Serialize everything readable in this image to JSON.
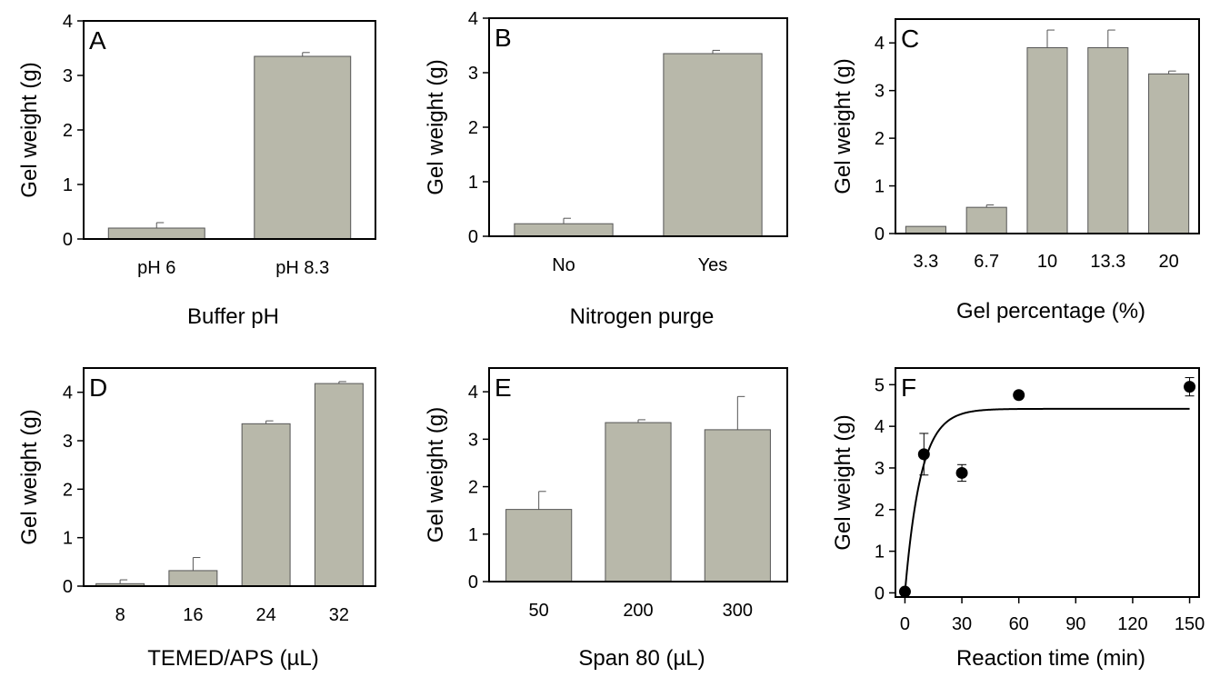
{
  "figure": {
    "colors": {
      "bar_fill": "#b8b8aa",
      "bar_stroke": "#555555",
      "marker": "#000000",
      "line": "#000000"
    }
  },
  "chart_data": [
    {
      "panel": "A",
      "type": "bar",
      "ylabel": "Gel weight (g)",
      "xlabel": "Buffer pH",
      "categories": [
        "pH 6",
        "pH 8.3"
      ],
      "values": [
        0.2,
        3.35
      ],
      "errors": [
        0.1,
        0.07
      ],
      "ylim": [
        0,
        4
      ],
      "yticks": [
        0,
        1,
        2,
        3,
        4
      ]
    },
    {
      "panel": "B",
      "type": "bar",
      "ylabel": "Gel weight (g)",
      "xlabel": "Nitrogen purge",
      "categories": [
        "No",
        "Yes"
      ],
      "values": [
        0.23,
        3.35
      ],
      "errors": [
        0.1,
        0.06
      ],
      "ylim": [
        0,
        4
      ],
      "yticks": [
        0,
        1,
        2,
        3,
        4
      ]
    },
    {
      "panel": "C",
      "type": "bar",
      "ylabel": "Gel weight (g)",
      "xlabel": "Gel percentage (%)",
      "categories": [
        "3.3",
        "6.7",
        "10",
        "13.3",
        "20"
      ],
      "values": [
        0.15,
        0.55,
        3.9,
        3.9,
        3.35
      ],
      "errors": [
        0,
        0.05,
        0.37,
        0.37,
        0.06
      ],
      "ylim": [
        0,
        4.5
      ],
      "yticks": [
        0,
        1,
        2,
        3,
        4
      ]
    },
    {
      "panel": "D",
      "type": "bar",
      "ylabel": "Gel weight (g)",
      "xlabel": "TEMED/APS (µL)",
      "categories": [
        "8",
        "16",
        "24",
        "32"
      ],
      "values": [
        0.05,
        0.32,
        3.35,
        4.18
      ],
      "errors": [
        0.08,
        0.27,
        0.06,
        0.04
      ],
      "ylim": [
        0,
        4.5
      ],
      "yticks": [
        0,
        1,
        2,
        3,
        4
      ]
    },
    {
      "panel": "E",
      "type": "bar",
      "ylabel": "Gel weight (g)",
      "xlabel": "Span 80 (µL)",
      "categories": [
        "50",
        "200",
        "300"
      ],
      "values": [
        1.52,
        3.35,
        3.2
      ],
      "errors": [
        0.38,
        0.06,
        0.7
      ],
      "ylim": [
        0,
        4.5
      ],
      "yticks": [
        0,
        1,
        2,
        3,
        4
      ]
    },
    {
      "panel": "F",
      "type": "scatter",
      "ylabel": "Gel weight (g)",
      "xlabel": "Reaction time (min)",
      "x": [
        0,
        10,
        30,
        60,
        150
      ],
      "y": [
        0.03,
        3.33,
        2.88,
        4.75,
        4.95
      ],
      "errors": [
        0,
        0.5,
        0.2,
        0,
        0.22
      ],
      "fit_curve": {
        "plateau": 4.42,
        "k": 0.12
      },
      "xlim": [
        -5,
        155
      ],
      "xticks": [
        0,
        30,
        60,
        90,
        120,
        150
      ],
      "ylim": [
        -0.1,
        5.4
      ],
      "yticks": [
        0,
        1,
        2,
        3,
        4,
        5
      ]
    }
  ]
}
